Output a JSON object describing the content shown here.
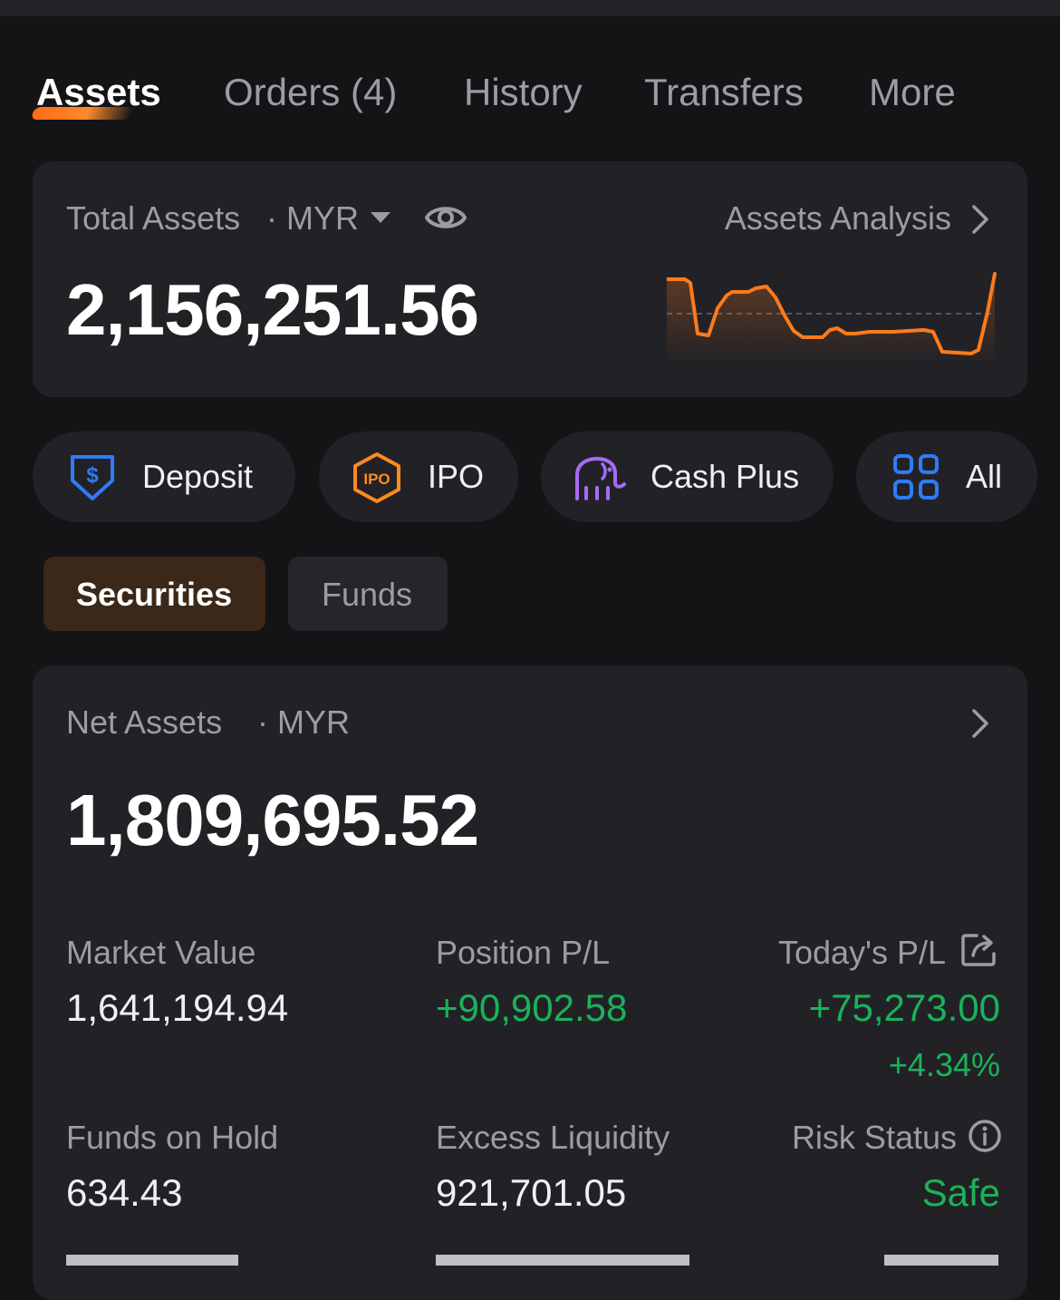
{
  "tabs": [
    {
      "label": "Assets",
      "active": true
    },
    {
      "label": "Orders (4)",
      "active": false
    },
    {
      "label": "History",
      "active": false
    },
    {
      "label": "Transfers",
      "active": false
    },
    {
      "label": "More",
      "active": false
    }
  ],
  "total_assets": {
    "label": "Total Assets",
    "currency": "· MYR",
    "analysis_label": "Assets Analysis",
    "value": "2,156,251.56",
    "sparkline_color": "#ff7a1a"
  },
  "quick_actions": [
    {
      "label": "Deposit",
      "icon": "deposit-icon",
      "color": "#2f7cf6"
    },
    {
      "label": "IPO",
      "icon": "ipo-icon",
      "color": "#ff8a1f"
    },
    {
      "label": "Cash Plus",
      "icon": "elephant-icon",
      "color": "#a46cf5"
    },
    {
      "label": "All",
      "icon": "grid-icon",
      "color": "#2f7cf6"
    }
  ],
  "segments": {
    "securities": "Securities",
    "funds": "Funds"
  },
  "net_assets": {
    "label": "Net Assets",
    "currency": "· MYR",
    "value": "1,809,695.52"
  },
  "metrics": {
    "market_value": {
      "label": "Market Value",
      "value": "1,641,194.94"
    },
    "position_pl": {
      "label": "Position P/L",
      "value": "+90,902.58"
    },
    "todays_pl": {
      "label": "Today's P/L",
      "value": "+75,273.00",
      "percent": "+4.34%"
    },
    "funds_on_hold": {
      "label": "Funds on Hold",
      "value": "634.43"
    },
    "excess_liquidity": {
      "label": "Excess Liquidity",
      "value": "921,701.05"
    },
    "risk_status": {
      "label": "Risk Status",
      "value": "Safe"
    }
  },
  "colors": {
    "accent": "#ff7a1a",
    "positive": "#19b35a",
    "card": "#222226",
    "background": "#141416"
  }
}
